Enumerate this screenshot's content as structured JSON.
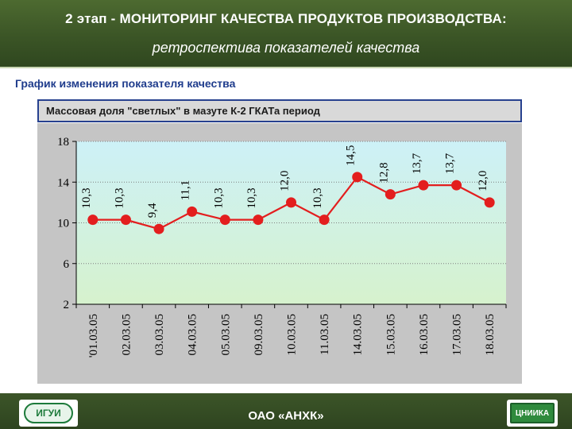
{
  "header": {
    "title": "2 этап - МОНИТОРИНГ КАЧЕСТВА ПРОДУКТОВ ПРОИЗВОДСТВА:",
    "subtitle": "ретроспектива   показателей качества"
  },
  "section_label": "График изменения показателя качества",
  "footer": {
    "company": "ОАО «АНХК»",
    "logo_left_text": "ИГУИ",
    "logo_right_text": "ЦНИИКА"
  },
  "chart_data": {
    "type": "line",
    "title": "Массовая доля \"светлых\" в мазуте К-2 ГКАТа период",
    "categories": [
      "'01.03.05",
      "02.03.05",
      "03.03.05",
      "04.03.05",
      "05.03.05",
      "09.03.05",
      "10.03.05",
      "11.03.05",
      "14.03.05",
      "15.03.05",
      "16.03.05",
      "17.03.05",
      "18.03.05"
    ],
    "series": [
      {
        "values": [
          10.3,
          10.3,
          9.4,
          11.1,
          10.3,
          10.3,
          12.0,
          10.3,
          14.5,
          12.8,
          13.7,
          13.7,
          12.0
        ]
      }
    ],
    "data_labels": [
      "10,3",
      "10,3",
      "9,4",
      "11,1",
      "10,3",
      "10,3",
      "12,0",
      "10,3",
      "14,5",
      "12,8",
      "13,7",
      "13,7",
      "12,0"
    ],
    "yticks": [
      "2",
      "6",
      "10",
      "14",
      "18"
    ],
    "ylim": [
      2,
      18
    ],
    "grid": true,
    "colors": {
      "line": "#e31e1e",
      "marker": "#e31e1e",
      "plot_top": "#cdf1f7",
      "plot_bottom": "#d6f2cd"
    }
  }
}
